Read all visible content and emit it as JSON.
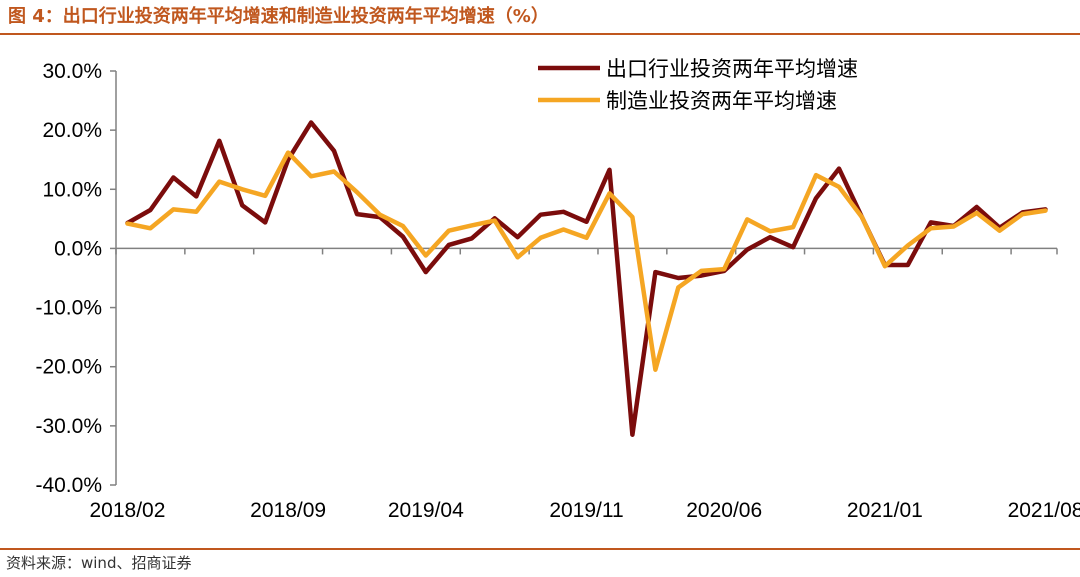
{
  "title": "图 4：出口行业投资两年平均增速和制造业投资两年平均增速（%）",
  "source": "资料来源：wind、招商证券",
  "chart_data": {
    "type": "line",
    "x": [
      "2018/02",
      "2018/03",
      "2018/04",
      "2018/05",
      "2018/06",
      "2018/07",
      "2018/08",
      "2018/09",
      "2018/10",
      "2018/11",
      "2018/12",
      "2019/02",
      "2019/03",
      "2019/04",
      "2019/05",
      "2019/06",
      "2019/07",
      "2019/08",
      "2019/09",
      "2019/10",
      "2019/11",
      "2019/12",
      "2020/02",
      "2020/03",
      "2020/04",
      "2020/05",
      "2020/06",
      "2020/07",
      "2020/08",
      "2020/09",
      "2020/10",
      "2020/11",
      "2020/12",
      "2021/01",
      "2021/02",
      "2021/03",
      "2021/04",
      "2021/05",
      "2021/06",
      "2021/07",
      "2021/08"
    ],
    "x_tick_labels": [
      "2018/02",
      "2018/09",
      "2019/04",
      "2019/11",
      "2020/06",
      "2021/01",
      "2021/08"
    ],
    "series": [
      {
        "name": "出口行业投资两年平均增速",
        "color": "#7b0c0c",
        "values": [
          4.3,
          6.5,
          12.0,
          8.8,
          18.2,
          7.3,
          4.4,
          15.0,
          21.3,
          16.5,
          5.8,
          5.3,
          2.0,
          -4.0,
          0.6,
          1.7,
          5.1,
          1.9,
          5.7,
          6.2,
          4.5,
          13.3,
          -31.5,
          -4.0,
          -5.0,
          -4.6,
          -3.8,
          -0.2,
          1.9,
          0.2,
          8.5,
          13.5,
          5.3,
          -2.8,
          -2.8,
          4.4,
          3.8,
          7.0,
          3.5,
          6.1,
          6.6
        ]
      },
      {
        "name": "制造业投资两年平均增速",
        "color": "#f5a623",
        "values": [
          4.2,
          3.4,
          6.6,
          6.2,
          11.3,
          10.0,
          8.9,
          16.2,
          12.2,
          13.0,
          9.5,
          5.7,
          3.8,
          -1.2,
          3.0,
          3.9,
          4.7,
          -1.5,
          1.8,
          3.2,
          1.8,
          9.3,
          5.3,
          -20.5,
          -6.6,
          -3.8,
          -3.5,
          4.9,
          2.9,
          3.6,
          12.4,
          10.4,
          5.3,
          -3.0,
          0.5,
          3.4,
          3.7,
          6.0,
          3.0,
          5.8,
          6.4
        ]
      }
    ],
    "y_tick_labels": [
      "30.0%",
      "20.0%",
      "10.0%",
      "0.0%",
      "-10.0%",
      "-20.0%",
      "-30.0%",
      "-40.0%"
    ],
    "ylim": [
      -40,
      30
    ],
    "legend_position": "top-right",
    "grid": false
  }
}
